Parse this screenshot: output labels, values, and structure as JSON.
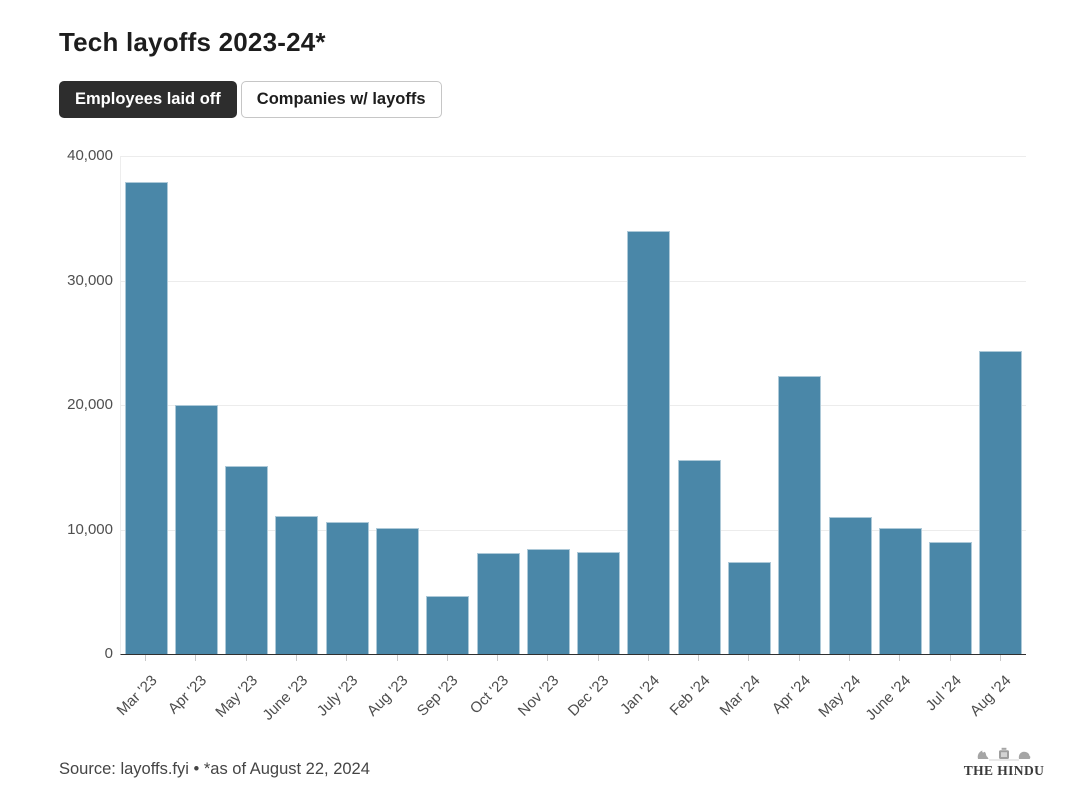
{
  "header": {
    "title": "Tech layoffs 2023-24*"
  },
  "toggle": {
    "options": [
      {
        "label": "Employees laid off",
        "active": true
      },
      {
        "label": "Companies w/ layoffs",
        "active": false
      }
    ]
  },
  "chart_data": {
    "type": "bar",
    "title": "Tech layoffs 2023-24*",
    "series_name": "Employees laid off",
    "categories": [
      "Mar '23",
      "Apr '23",
      "May '23",
      "June '23",
      "July '23",
      "Aug '23",
      "Sep '23",
      "Oct '23",
      "Nov '23",
      "Dec '23",
      "Jan '24",
      "Feb '24",
      "Mar '24",
      "Apr '24",
      "May '24",
      "June '24",
      "Jul '24",
      "Aug '24"
    ],
    "values": [
      37900,
      20000,
      15100,
      11100,
      10600,
      10100,
      4700,
      8100,
      8400,
      8200,
      34000,
      15600,
      7400,
      22300,
      11000,
      10100,
      9000,
      24300
    ],
    "xlabel": "",
    "ylabel": "",
    "ylim": [
      0,
      40000
    ],
    "ytick_values": [
      40000,
      30000,
      20000,
      10000,
      0
    ],
    "ytick_labels": [
      "40,000",
      "30,000",
      "20,000",
      "10,000",
      "0"
    ],
    "grid": "horizontal gridlines on, vertical off",
    "legend": "none",
    "bar_color": "#4a87a8"
  },
  "footer": {
    "source": "Source: layoffs.fyi • *as of August 22, 2024",
    "brand": "THE HINDU"
  },
  "colors": {
    "bar": "#4a87a8",
    "active_button_bg": "#2d2d2d",
    "title_text": "#1d1d1d",
    "axis_text": "#4f4f4f",
    "gridline": "#ececec",
    "baseline": "#303030"
  }
}
